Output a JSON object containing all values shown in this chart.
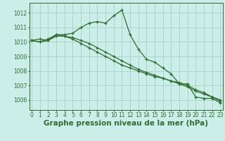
{
  "title": "Graphe pression niveau de la mer (hPa)",
  "background_color": "#cceee8",
  "grid_color": "#aad4cc",
  "line_color": "#2d6e2d",
  "marker": "+",
  "x_ticks": [
    0,
    1,
    2,
    3,
    4,
    5,
    6,
    7,
    8,
    9,
    10,
    11,
    12,
    13,
    14,
    15,
    16,
    17,
    18,
    19,
    20,
    21,
    22,
    23
  ],
  "y_ticks": [
    1006,
    1007,
    1008,
    1009,
    1010,
    1011,
    1012
  ],
  "ylim": [
    1005.3,
    1012.7
  ],
  "xlim": [
    -0.3,
    23.3
  ],
  "series": [
    [
      1010.1,
      1010.2,
      1010.1,
      1010.5,
      1010.5,
      1010.6,
      1011.0,
      1011.3,
      1011.4,
      1011.3,
      1011.8,
      1012.2,
      1010.5,
      1009.5,
      1008.8,
      1008.6,
      1008.2,
      1007.8,
      1007.1,
      1007.1,
      1006.2,
      1006.1,
      1006.1,
      1005.8
    ],
    [
      1010.1,
      1010.0,
      1010.2,
      1010.5,
      1010.4,
      1010.3,
      1010.1,
      1009.9,
      1009.6,
      1009.3,
      1009.0,
      1008.7,
      1008.4,
      1008.1,
      1007.9,
      1007.7,
      1007.5,
      1007.3,
      1007.1,
      1006.9,
      1006.6,
      1006.4,
      1006.2,
      1006.0
    ],
    [
      1010.1,
      1010.0,
      1010.1,
      1010.4,
      1010.4,
      1010.2,
      1009.9,
      1009.6,
      1009.3,
      1009.0,
      1008.7,
      1008.4,
      1008.2,
      1008.0,
      1007.8,
      1007.6,
      1007.5,
      1007.3,
      1007.2,
      1007.0,
      1006.7,
      1006.5,
      1006.2,
      1005.9
    ]
  ],
  "title_fontsize": 7.5,
  "tick_fontsize": 5.5
}
